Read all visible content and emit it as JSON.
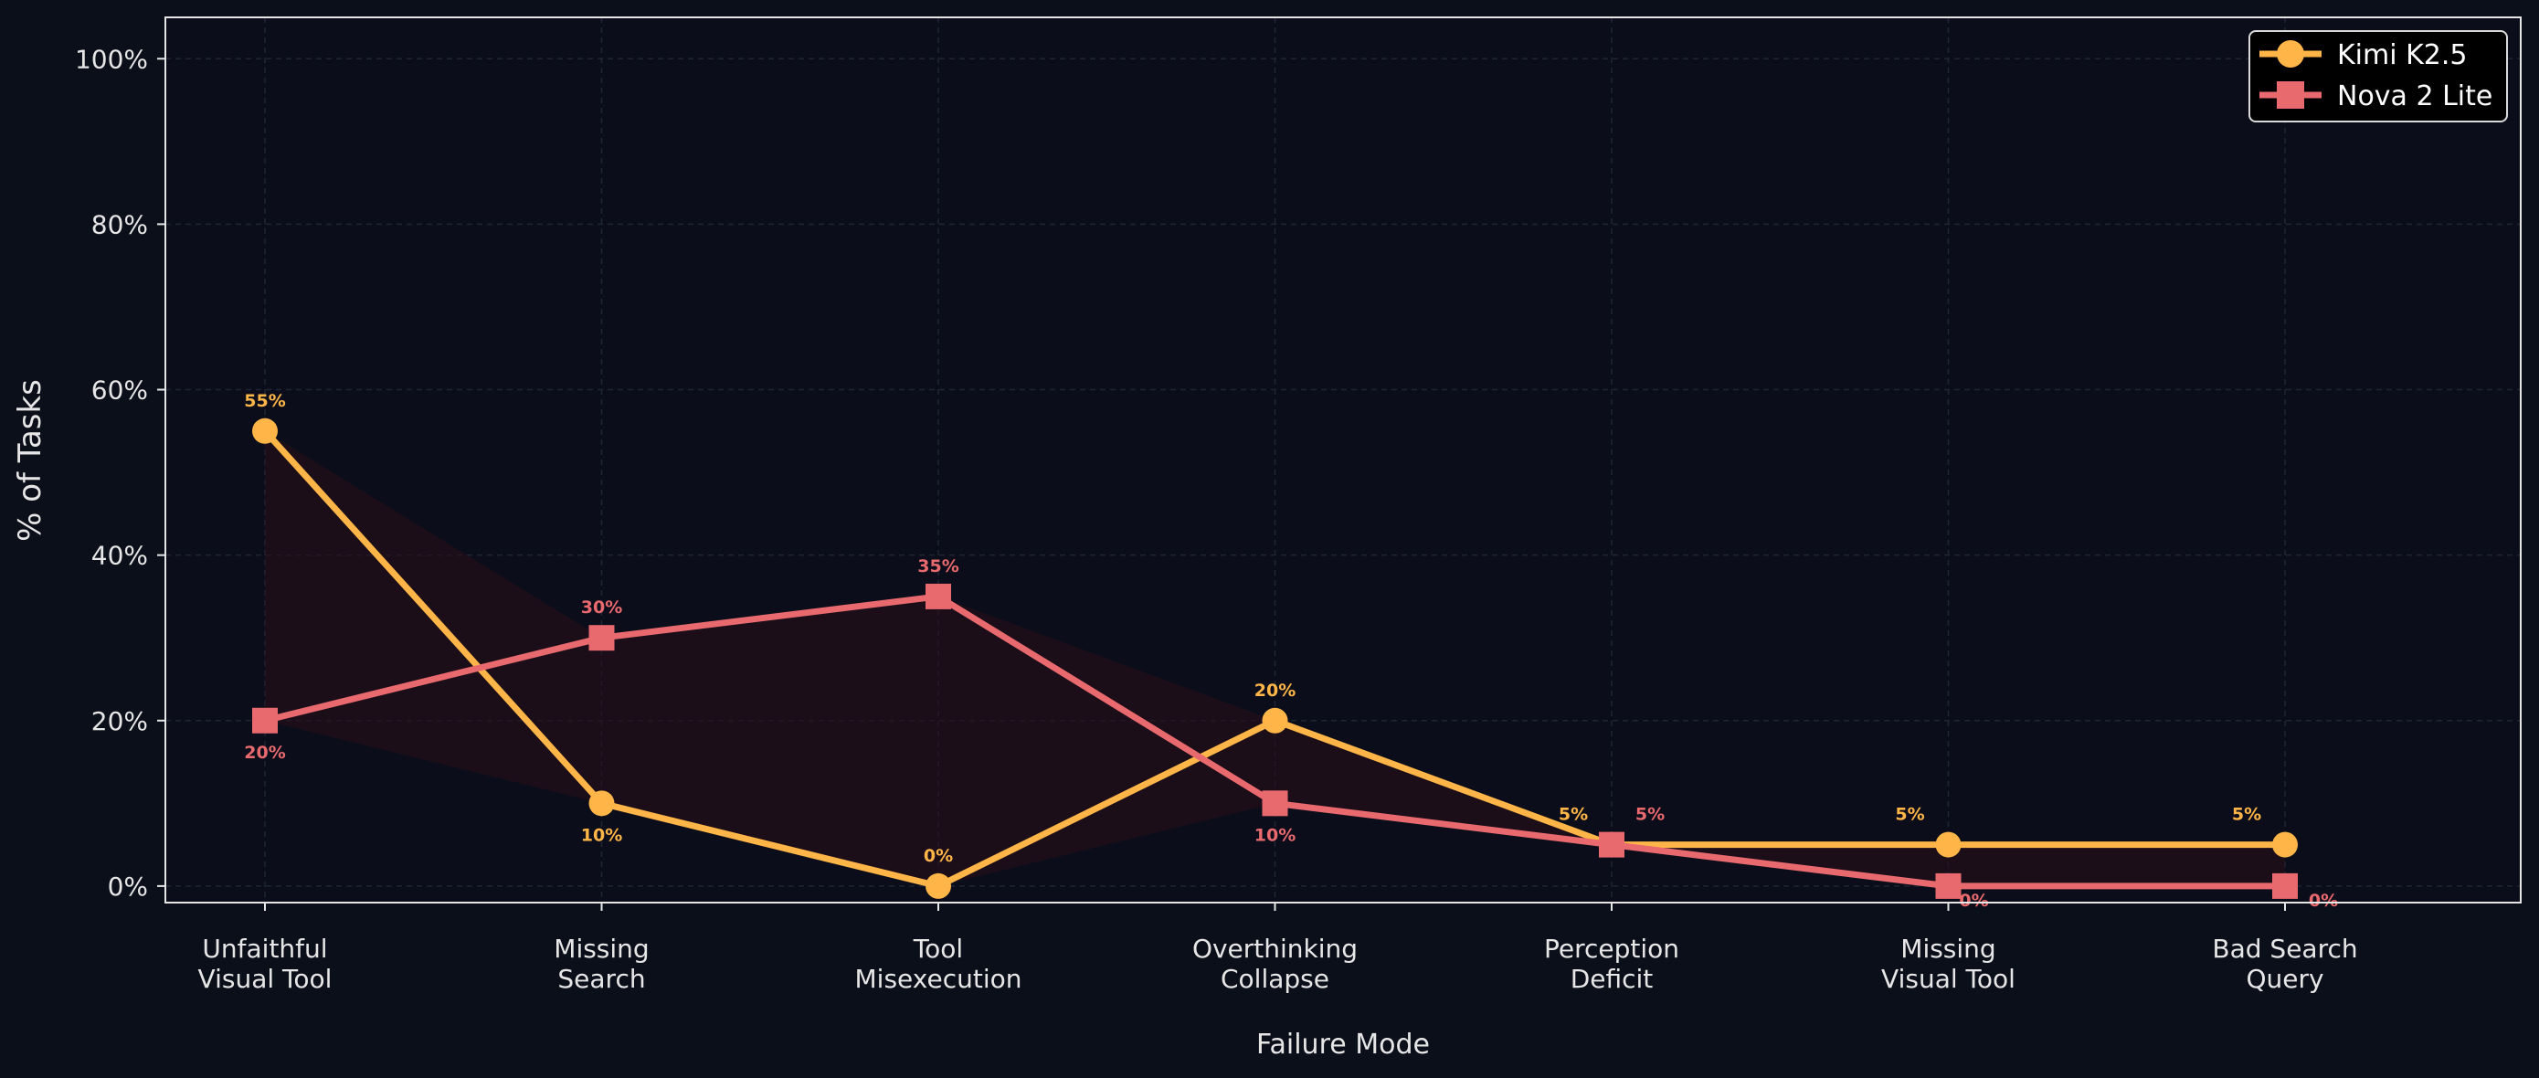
{
  "chart_data": {
    "type": "line",
    "xlabel": "Failure Mode",
    "ylabel": "% of Tasks",
    "ylim": [
      -2,
      105
    ],
    "yticks": [
      0,
      20,
      40,
      60,
      80,
      100
    ],
    "ytick_labels": [
      "0%",
      "20%",
      "40%",
      "60%",
      "80%",
      "100%"
    ],
    "categories": [
      [
        "Unfaithful",
        "Visual Tool"
      ],
      [
        "Missing",
        "Search"
      ],
      [
        "Tool",
        "Misexecution"
      ],
      [
        "Overthinking",
        "Collapse"
      ],
      [
        "Perception",
        "Deficit"
      ],
      [
        "Missing",
        "Visual Tool"
      ],
      [
        "Bad Search",
        "Query"
      ]
    ],
    "series": [
      {
        "name": "Kimi K2.5",
        "color": "#ffb547",
        "marker": "circle",
        "values": [
          55,
          10,
          0,
          20,
          5,
          5,
          5
        ],
        "labels": [
          "55%",
          "10%",
          "0%",
          "20%",
          "5%",
          "5%",
          "5%"
        ]
      },
      {
        "name": "Nova 2 Lite",
        "color": "#e8696e",
        "marker": "square",
        "values": [
          20,
          30,
          35,
          10,
          5,
          0,
          0
        ],
        "labels": [
          "20%",
          "30%",
          "35%",
          "10%",
          "5%",
          "0%",
          "0%"
        ]
      }
    ],
    "grid": true,
    "legend_position": "top-right",
    "background": "#0b0f19",
    "plot_background": "#0b0e1a"
  }
}
